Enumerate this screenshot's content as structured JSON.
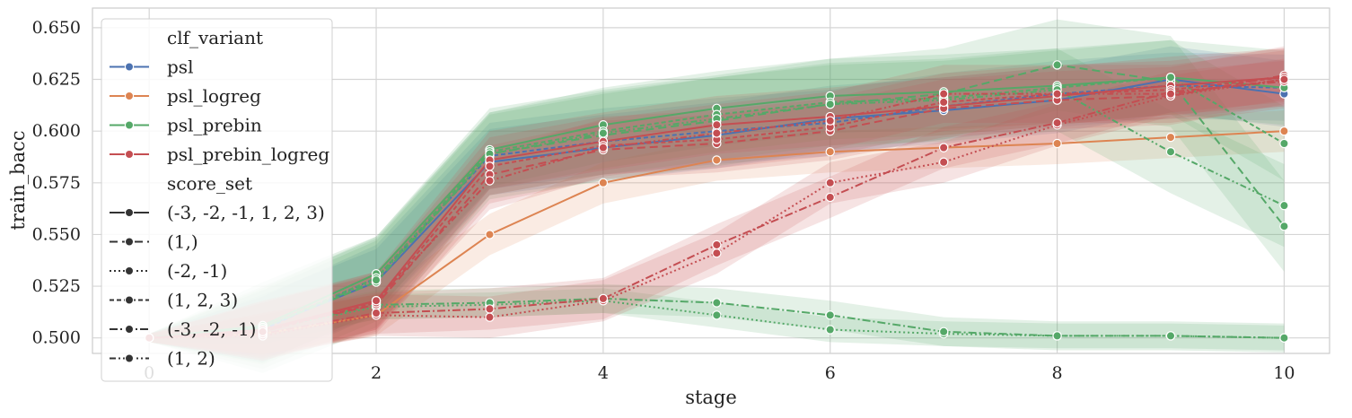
{
  "chart_data": {
    "type": "line",
    "xlabel": "stage",
    "ylabel": "train_bacc",
    "xlim": [
      -0.5,
      10.4
    ],
    "ylim": [
      0.4925,
      0.6595
    ],
    "xticks": [
      0,
      2,
      4,
      6,
      8,
      10
    ],
    "yticks": [
      0.5,
      0.525,
      0.55,
      0.575,
      0.6,
      0.625,
      0.65
    ],
    "grid": true,
    "legend": {
      "placement": "top-left",
      "hue_title": "clf_variant",
      "style_title": "score_set",
      "hue_entries": [
        {
          "name": "psl",
          "color": "#4c72b0"
        },
        {
          "name": "psl_logreg",
          "color": "#dd8452"
        },
        {
          "name": "psl_prebin",
          "color": "#55a868"
        },
        {
          "name": "psl_prebin_logreg",
          "color": "#c44e52"
        }
      ],
      "style_entries": [
        {
          "name": "(-3, -2, -1, 1, 2, 3)",
          "dash": "solid"
        },
        {
          "name": "(1,)",
          "dash": "dashed"
        },
        {
          "name": "(-2, -1)",
          "dash": "dotted"
        },
        {
          "name": "(1, 2, 3)",
          "dash": "densedash"
        },
        {
          "name": "(-3, -2, -1)",
          "dash": "dashdot"
        },
        {
          "name": "(1, 2)",
          "dash": "dashdotdot"
        }
      ]
    },
    "series": [
      {
        "clf_variant": "psl",
        "score_set": "(-3, -2, -1, 1, 2, 3)",
        "color": "#4c72b0",
        "dash": "solid",
        "x": [
          0,
          1,
          2,
          3,
          4,
          5,
          6,
          7,
          8,
          9,
          10
        ],
        "y": [
          0.5,
          0.505,
          0.527,
          0.585,
          0.592,
          0.598,
          0.606,
          0.61,
          0.615,
          0.625,
          0.618
        ],
        "band": 0.016
      },
      {
        "clf_variant": "psl",
        "score_set": "(1, 2, 3)",
        "color": "#4c72b0",
        "dash": "densedash",
        "x": [
          0,
          1,
          2,
          3,
          4,
          5,
          6,
          7,
          8,
          9,
          10
        ],
        "y": [
          0.5,
          0.504,
          0.529,
          0.588,
          0.595,
          0.6,
          0.604,
          0.612,
          0.618,
          0.622,
          0.621
        ],
        "band": 0.016
      },
      {
        "clf_variant": "psl_logreg",
        "score_set": "(-3, -2, -1, 1, 2, 3)",
        "color": "#dd8452",
        "dash": "solid",
        "x": [
          0,
          1,
          2,
          3,
          4,
          5,
          6,
          7,
          8,
          9,
          10
        ],
        "y": [
          0.5,
          0.502,
          0.511,
          0.55,
          0.575,
          0.586,
          0.59,
          0.592,
          0.594,
          0.597,
          0.6
        ],
        "band": 0.01
      },
      {
        "clf_variant": "psl_prebin",
        "score_set": "(-3, -2, -1, 1, 2, 3)",
        "color": "#55a868",
        "dash": "solid",
        "x": [
          0,
          1,
          2,
          3,
          4,
          5,
          6,
          7,
          8,
          9,
          10
        ],
        "y": [
          0.5,
          0.506,
          0.531,
          0.591,
          0.603,
          0.611,
          0.617,
          0.619,
          0.622,
          0.626,
          0.621
        ],
        "band": 0.018
      },
      {
        "clf_variant": "psl_prebin",
        "score_set": "(1,)",
        "color": "#55a868",
        "dash": "dashed",
        "x": [
          0,
          1,
          2,
          3,
          4,
          5,
          6,
          7,
          8,
          9,
          10
        ],
        "y": [
          0.5,
          0.505,
          0.527,
          0.589,
          0.598,
          0.605,
          0.613,
          0.618,
          0.632,
          0.624,
          0.554
        ],
        "band": 0.022
      },
      {
        "clf_variant": "psl_prebin",
        "score_set": "(-2, -1)",
        "color": "#55a868",
        "dash": "dotted",
        "x": [
          0,
          1,
          2,
          3,
          4,
          5,
          6,
          7,
          8,
          9,
          10
        ],
        "y": [
          0.5,
          0.504,
          0.515,
          0.516,
          0.518,
          0.511,
          0.504,
          0.502,
          0.501,
          0.501,
          0.5
        ],
        "band": 0.006
      },
      {
        "clf_variant": "psl_prebin",
        "score_set": "(1, 2, 3)",
        "color": "#55a868",
        "dash": "densedash",
        "x": [
          0,
          1,
          2,
          3,
          4,
          5,
          6,
          7,
          8,
          9,
          10
        ],
        "y": [
          0.5,
          0.505,
          0.529,
          0.59,
          0.6,
          0.608,
          0.614,
          0.616,
          0.621,
          0.626,
          0.594
        ],
        "band": 0.018
      },
      {
        "clf_variant": "psl_prebin",
        "score_set": "(-3, -2, -1)",
        "color": "#55a868",
        "dash": "dashdot",
        "x": [
          0,
          1,
          2,
          3,
          4,
          5,
          6,
          7,
          8,
          9,
          10
        ],
        "y": [
          0.5,
          0.504,
          0.516,
          0.517,
          0.519,
          0.517,
          0.511,
          0.503,
          0.501,
          0.501,
          0.5
        ],
        "band": 0.007
      },
      {
        "clf_variant": "psl_prebin",
        "score_set": "(1, 2)",
        "color": "#55a868",
        "dash": "dashdotdot",
        "x": [
          0,
          1,
          2,
          3,
          4,
          5,
          6,
          7,
          8,
          9,
          10
        ],
        "y": [
          0.5,
          0.505,
          0.528,
          0.589,
          0.599,
          0.606,
          0.613,
          0.615,
          0.62,
          0.59,
          0.564
        ],
        "band": 0.02
      },
      {
        "clf_variant": "psl_prebin_logreg",
        "score_set": "(-3, -2, -1, 1, 2, 3)",
        "color": "#c44e52",
        "dash": "solid",
        "x": [
          0,
          1,
          2,
          3,
          4,
          5,
          6,
          7,
          8,
          9,
          10
        ],
        "y": [
          0.5,
          0.504,
          0.518,
          0.586,
          0.595,
          0.603,
          0.607,
          0.612,
          0.617,
          0.622,
          0.626
        ],
        "band": 0.014
      },
      {
        "clf_variant": "psl_prebin_logreg",
        "score_set": "(1,)",
        "color": "#c44e52",
        "dash": "dashed",
        "x": [
          0,
          1,
          2,
          3,
          4,
          5,
          6,
          7,
          8,
          9,
          10
        ],
        "y": [
          0.5,
          0.504,
          0.516,
          0.579,
          0.591,
          0.594,
          0.6,
          0.611,
          0.615,
          0.617,
          0.627
        ],
        "band": 0.014
      },
      {
        "clf_variant": "psl_prebin_logreg",
        "score_set": "(-2, -1)",
        "color": "#c44e52",
        "dash": "dotted",
        "x": [
          0,
          1,
          2,
          3,
          4,
          5,
          6,
          7,
          8,
          9,
          10
        ],
        "y": [
          0.5,
          0.501,
          0.511,
          0.51,
          0.518,
          0.541,
          0.575,
          0.585,
          0.603,
          0.617,
          0.625
        ],
        "band": 0.01
      },
      {
        "clf_variant": "psl_prebin_logreg",
        "score_set": "(1, 2, 3)",
        "color": "#c44e52",
        "dash": "densedash",
        "x": [
          0,
          1,
          2,
          3,
          4,
          5,
          6,
          7,
          8,
          9,
          10
        ],
        "y": [
          0.5,
          0.503,
          0.517,
          0.583,
          0.593,
          0.596,
          0.602,
          0.614,
          0.618,
          0.62,
          0.626
        ],
        "band": 0.014
      },
      {
        "clf_variant": "psl_prebin_logreg",
        "score_set": "(-3, -2, -1)",
        "color": "#c44e52",
        "dash": "dashdot",
        "x": [
          0,
          1,
          2,
          3,
          4,
          5,
          6,
          7,
          8,
          9,
          10
        ],
        "y": [
          0.5,
          0.502,
          0.512,
          0.514,
          0.519,
          0.545,
          0.568,
          0.592,
          0.604,
          0.619,
          0.624
        ],
        "band": 0.01
      },
      {
        "clf_variant": "psl_prebin_logreg",
        "score_set": "(1, 2)",
        "color": "#c44e52",
        "dash": "dashdotdot",
        "x": [
          0,
          1,
          2,
          3,
          4,
          5,
          6,
          7,
          8,
          9,
          10
        ],
        "y": [
          0.5,
          0.503,
          0.518,
          0.576,
          0.592,
          0.599,
          0.605,
          0.618,
          0.618,
          0.618,
          0.625
        ],
        "band": 0.014
      }
    ]
  }
}
